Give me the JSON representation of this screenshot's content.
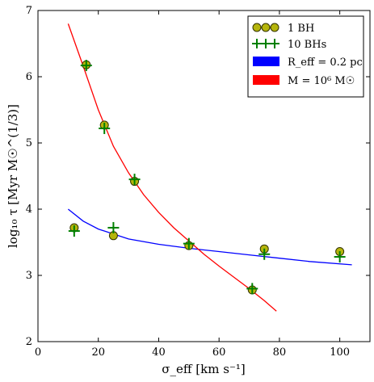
{
  "chart_data": {
    "type": "scatter",
    "xlabel": "σ_eff [km s⁻¹]",
    "ylabel": "log₁₀ τ [Myr M☉^(1/3)]",
    "xlim": [
      0,
      110
    ],
    "ylim": [
      2,
      7
    ],
    "xticks": [
      0,
      20,
      40,
      60,
      80,
      100
    ],
    "yticks": [
      2,
      3,
      4,
      5,
      6,
      7
    ],
    "grid": false,
    "legend_position": "top-right",
    "series": [
      {
        "name": "1 BH",
        "kind": "points",
        "marker": "circle",
        "color": "#b5b50c",
        "edge_color": "#333300",
        "points": [
          {
            "x": 12,
            "y": 3.72
          },
          {
            "x": 16,
            "y": 6.18
          },
          {
            "x": 22,
            "y": 5.27
          },
          {
            "x": 25,
            "y": 3.6
          },
          {
            "x": 32,
            "y": 4.42
          },
          {
            "x": 50,
            "y": 3.45
          },
          {
            "x": 71,
            "y": 2.78
          },
          {
            "x": 75,
            "y": 3.4
          },
          {
            "x": 100,
            "y": 3.36
          }
        ]
      },
      {
        "name": "10 BHs",
        "kind": "points",
        "marker": "plus",
        "color": "#008000",
        "points": [
          {
            "x": 12,
            "y": 3.67
          },
          {
            "x": 16,
            "y": 6.17
          },
          {
            "x": 22,
            "y": 5.22
          },
          {
            "x": 25,
            "y": 3.72
          },
          {
            "x": 32,
            "y": 4.45
          },
          {
            "x": 50,
            "y": 3.48
          },
          {
            "x": 71,
            "y": 2.8
          },
          {
            "x": 75,
            "y": 3.32
          },
          {
            "x": 100,
            "y": 3.28
          }
        ]
      },
      {
        "name": "R_eff = 0.2 pc",
        "kind": "line",
        "color": "#0000ff",
        "points": [
          {
            "x": 10,
            "y": 4.0
          },
          {
            "x": 15,
            "y": 3.82
          },
          {
            "x": 20,
            "y": 3.7
          },
          {
            "x": 30,
            "y": 3.55
          },
          {
            "x": 40,
            "y": 3.47
          },
          {
            "x": 50,
            "y": 3.41
          },
          {
            "x": 60,
            "y": 3.36
          },
          {
            "x": 70,
            "y": 3.31
          },
          {
            "x": 80,
            "y": 3.26
          },
          {
            "x": 90,
            "y": 3.21
          },
          {
            "x": 104,
            "y": 3.16
          }
        ]
      },
      {
        "name": "M = 10⁶ M☉",
        "kind": "line",
        "color": "#ff0000",
        "points": [
          {
            "x": 10,
            "y": 6.8
          },
          {
            "x": 15,
            "y": 6.16
          },
          {
            "x": 20,
            "y": 5.5
          },
          {
            "x": 25,
            "y": 4.95
          },
          {
            "x": 30,
            "y": 4.55
          },
          {
            "x": 35,
            "y": 4.22
          },
          {
            "x": 40,
            "y": 3.95
          },
          {
            "x": 45,
            "y": 3.72
          },
          {
            "x": 50,
            "y": 3.52
          },
          {
            "x": 55,
            "y": 3.32
          },
          {
            "x": 60,
            "y": 3.14
          },
          {
            "x": 65,
            "y": 2.97
          },
          {
            "x": 70,
            "y": 2.8
          },
          {
            "x": 75,
            "y": 2.62
          },
          {
            "x": 79,
            "y": 2.46
          }
        ]
      }
    ]
  }
}
